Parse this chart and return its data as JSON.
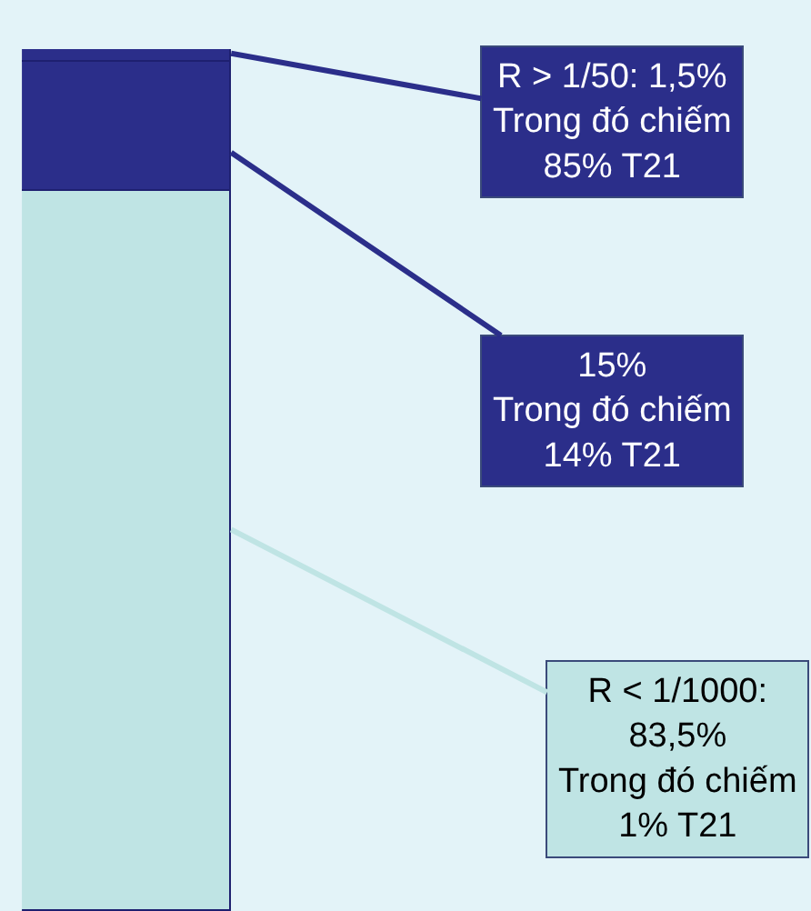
{
  "chart_data": {
    "type": "bar",
    "stacked": true,
    "categories": [
      null
    ],
    "tick_labels": false,
    "series": [
      {
        "color": "#bfe4e4",
        "values": [
          83.5
        ],
        "value_labels": [
          "R < 1/1000:\n83,5%\nTrong đó chiếm\n1% T21"
        ]
      },
      {
        "color": "#2b2e8a",
        "values": [
          15
        ],
        "value_labels": [
          "15%\nTrong đó chiếm\n14% T21"
        ]
      },
      {
        "color": "#2b2e8a",
        "values": [
          1.5
        ],
        "value_labels": [
          "R > 1/50: 1,5%\nTrong đó chiếm\n85% T21"
        ]
      }
    ]
  }
}
